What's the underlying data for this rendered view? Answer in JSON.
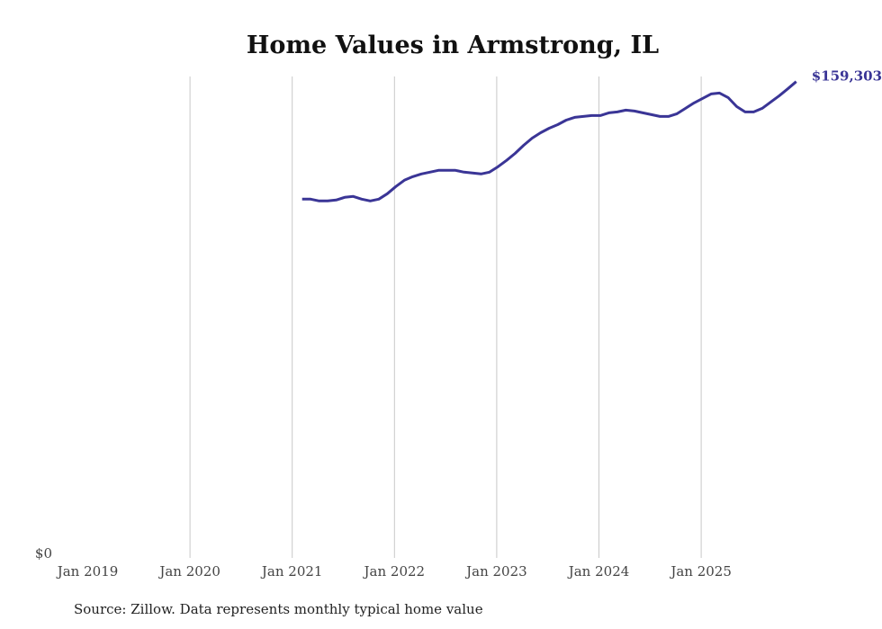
{
  "chart_data": {
    "type": "line",
    "title": "Home Values in Armstrong, IL",
    "xlabel": "",
    "ylabel": "",
    "ylim": [
      0,
      161000
    ],
    "y_tick_labels": [
      "$0"
    ],
    "x_tick_labels": [
      "Jan 2019",
      "Jan 2020",
      "Jan 2021",
      "Jan 2022",
      "Jan 2023",
      "Jan 2024",
      "Jan 2025"
    ],
    "x_tick_years": [
      2019,
      2020,
      2021,
      2022,
      2023,
      2024,
      2025
    ],
    "grid": "vertical",
    "line_color": "#3a3596",
    "series": [
      {
        "name": "Typical home value",
        "start": "2021-02",
        "frequency": "monthly",
        "values": [
          120200,
          120200,
          119600,
          119600,
          119900,
          120800,
          121100,
          120200,
          119600,
          120200,
          122000,
          124400,
          126500,
          127700,
          128600,
          129200,
          129800,
          129800,
          129800,
          129200,
          128900,
          128600,
          129200,
          131000,
          133100,
          135400,
          138100,
          140500,
          142300,
          143800,
          145000,
          146500,
          147400,
          147700,
          148000,
          148000,
          148900,
          149200,
          149800,
          149500,
          148900,
          148300,
          147700,
          147700,
          148600,
          150400,
          152200,
          153700,
          155200,
          155500,
          154000,
          151000,
          149200,
          149200,
          150400,
          152500,
          154600,
          156900,
          159303
        ]
      }
    ],
    "end_label": "$159,303"
  },
  "footer": {
    "source": "Source: Zillow. Data represents monthly typical home value"
  }
}
